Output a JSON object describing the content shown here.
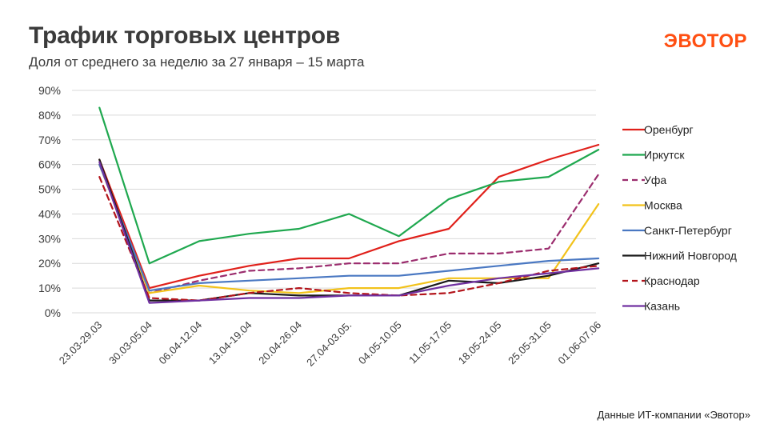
{
  "header": {
    "title": "Трафик торговых центров",
    "subtitle": "Доля от среднего за неделю за 27 января – 15 марта",
    "logo": "ЭВОТОР"
  },
  "footer": {
    "source": "Данные ИТ-компании «Эвотор»"
  },
  "colors": {
    "title": "#3b3b3b",
    "logo": "#ff4f12",
    "grid": "#d9d9d9"
  },
  "chart_data": {
    "type": "line",
    "title": "Трафик торговых центров",
    "subtitle": "Доля от среднего за неделю за 27 января – 15 марта",
    "xlabel": "",
    "ylabel": "",
    "ylim": [
      0,
      90
    ],
    "yticks": [
      "0%",
      "10%",
      "20%",
      "30%",
      "40%",
      "50%",
      "60%",
      "70%",
      "80%",
      "90%"
    ],
    "grid": true,
    "legend_position": "right",
    "categories": [
      "23.03-29.03",
      "30.03-05.04",
      "06.04-12.04",
      "13.04-19.04",
      "20.04-26.04",
      "27.04-03.05.",
      "04.05-10.05",
      "11.05-17.05",
      "18.05-24.05",
      "25.05-31.05",
      "01.06-07.06"
    ],
    "series": [
      {
        "name": "Оренбург",
        "color": "#e0201a",
        "dashed": false,
        "values": [
          62,
          10,
          15,
          19,
          22,
          22,
          29,
          34,
          55,
          62,
          68
        ]
      },
      {
        "name": "Иркутск",
        "color": "#1fa84f",
        "dashed": false,
        "values": [
          83,
          20,
          29,
          32,
          34,
          40,
          31,
          46,
          53,
          55,
          66
        ]
      },
      {
        "name": "Уфа",
        "color": "#9b2d6e",
        "dashed": true,
        "values": [
          60,
          8,
          13,
          17,
          18,
          20,
          20,
          24,
          24,
          26,
          56
        ]
      },
      {
        "name": "Москва",
        "color": "#f2c21b",
        "dashed": false,
        "values": [
          60,
          8,
          11,
          9,
          8,
          10,
          10,
          14,
          14,
          14,
          44
        ]
      },
      {
        "name": "Санкт-Петербург",
        "color": "#4a78c2",
        "dashed": false,
        "values": [
          60,
          9,
          12,
          13,
          14,
          15,
          15,
          17,
          19,
          21,
          22
        ]
      },
      {
        "name": "Нижний  Новгород",
        "color": "#1a1a1a",
        "dashed": false,
        "values": [
          62,
          5,
          5,
          8,
          7,
          7,
          7,
          13,
          12,
          15,
          20
        ]
      },
      {
        "name": "Краснодар",
        "color": "#b3141b",
        "dashed": true,
        "values": [
          55,
          6,
          5,
          8,
          10,
          8,
          7,
          8,
          12,
          17,
          19
        ]
      },
      {
        "name": "Казань",
        "color": "#7030a0",
        "dashed": false,
        "values": [
          61,
          4,
          5,
          6,
          6,
          7,
          7,
          11,
          14,
          16,
          18
        ]
      }
    ]
  }
}
